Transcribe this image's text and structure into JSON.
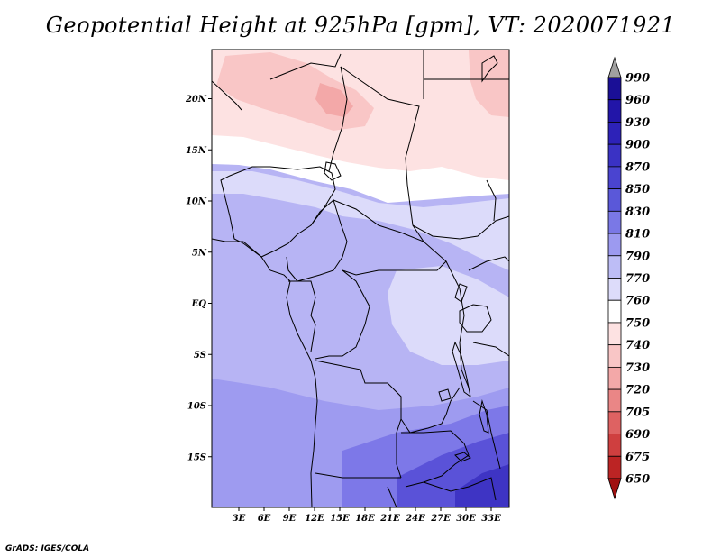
{
  "title": "Geopotential Height at 925hPa [gpm], VT: 2020071921",
  "footer": "GrADS: IGES/COLA",
  "map": {
    "lat_labels": [
      "20N",
      "15N",
      "10N",
      "5N",
      "EQ",
      "5S",
      "10S",
      "15S"
    ],
    "lat_values": [
      20,
      15,
      10,
      5,
      0,
      -5,
      -10,
      -15
    ],
    "lon_labels": [
      "3E",
      "6E",
      "9E",
      "12E",
      "15E",
      "18E",
      "21E",
      "24E",
      "27E",
      "30E",
      "33E"
    ],
    "lon_values": [
      3,
      6,
      9,
      12,
      15,
      18,
      21,
      24,
      27,
      30,
      33
    ]
  },
  "colorbar": {
    "labels": [
      "990",
      "960",
      "930",
      "900",
      "870",
      "850",
      "830",
      "810",
      "790",
      "770",
      "760",
      "750",
      "740",
      "730",
      "720",
      "705",
      "690",
      "675",
      "650"
    ],
    "colors": [
      "#1a0f96",
      "#2215a8",
      "#2d22b8",
      "#3a32c4",
      "#4a44d0",
      "#5a58d9",
      "#7a78e6",
      "#9c9af0",
      "#bdbdf6",
      "#dddcfa",
      "#ffffff",
      "#fde2e2",
      "#f9c6c6",
      "#f3a8a8",
      "#ea8686",
      "#de6262",
      "#cf3f3f",
      "#bc2424",
      "#a51414"
    ],
    "over_color": "#a0a0a0",
    "under_color": "#a01010"
  }
}
